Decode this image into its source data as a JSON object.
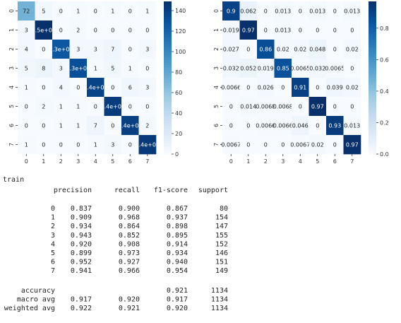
{
  "chart_data": [
    {
      "type": "heatmap",
      "title": "",
      "xlabel": "",
      "ylabel": "",
      "x_categories": [
        "0",
        "1",
        "2",
        "3",
        "4",
        "5",
        "6",
        "7"
      ],
      "y_categories": [
        "0",
        "1",
        "2",
        "3",
        "4",
        "5",
        "6",
        "7"
      ],
      "values": [
        [
          72,
          5,
          0,
          1,
          0,
          1,
          0,
          1
        ],
        [
          3,
          149,
          0,
          2,
          0,
          0,
          0,
          0
        ],
        [
          4,
          0,
          127,
          3,
          3,
          7,
          0,
          3
        ],
        [
          5,
          8,
          3,
          132,
          1,
          5,
          1,
          0
        ],
        [
          1,
          0,
          4,
          0,
          138,
          0,
          6,
          3
        ],
        [
          0,
          2,
          1,
          1,
          0,
          142,
          0,
          0
        ],
        [
          0,
          0,
          1,
          1,
          7,
          0,
          140,
          2
        ],
        [
          1,
          0,
          0,
          0,
          1,
          3,
          0,
          144
        ]
      ],
      "cell_labels": [
        [
          "72",
          "5",
          "0",
          "1",
          "0",
          "1",
          "0",
          "1"
        ],
        [
          "3",
          "1.5e+02",
          "0",
          "2",
          "0",
          "0",
          "0",
          "0"
        ],
        [
          "4",
          "0",
          "1.3e+02",
          "3",
          "3",
          "7",
          "0",
          "3"
        ],
        [
          "5",
          "8",
          "3",
          "1.3e+02",
          "1",
          "5",
          "1",
          "0"
        ],
        [
          "1",
          "0",
          "4",
          "0",
          "1.4e+02",
          "0",
          "6",
          "3"
        ],
        [
          "0",
          "2",
          "1",
          "1",
          "0",
          "1.4e+02",
          "0",
          "0"
        ],
        [
          "0",
          "0",
          "1",
          "1",
          "7",
          "0",
          "1.4e+02",
          "2"
        ],
        [
          "1",
          "0",
          "0",
          "0",
          "1",
          "3",
          "0",
          "1.4e+02"
        ]
      ],
      "colorbar": {
        "min": 0,
        "max": 149,
        "ticks": [
          "0",
          "20",
          "40",
          "60",
          "80",
          "100",
          "120",
          "140"
        ]
      },
      "colormap": [
        "#f7fbff",
        "#deebf7",
        "#c6dbef",
        "#9ecae1",
        "#6baed6",
        "#4292c6",
        "#2171b5",
        "#08519c",
        "#08306b"
      ]
    },
    {
      "type": "heatmap",
      "title": "",
      "xlabel": "",
      "ylabel": "",
      "x_categories": [
        "0",
        "1",
        "2",
        "3",
        "4",
        "5",
        "6",
        "7"
      ],
      "y_categories": [
        "0",
        "1",
        "2",
        "3",
        "4",
        "5",
        "6",
        "7"
      ],
      "values": [
        [
          0.9,
          0.062,
          0,
          0.013,
          0,
          0.013,
          0,
          0.013
        ],
        [
          0.019,
          0.97,
          0,
          0.013,
          0,
          0,
          0,
          0
        ],
        [
          0.027,
          0,
          0.86,
          0.02,
          0.02,
          0.048,
          0,
          0.02
        ],
        [
          0.032,
          0.052,
          0.019,
          0.85,
          0.0065,
          0.032,
          0.0065,
          0
        ],
        [
          0.0066,
          0,
          0.026,
          0,
          0.91,
          0,
          0.039,
          0.02
        ],
        [
          0,
          0.014,
          0.0068,
          0.0068,
          0,
          0.97,
          0,
          0
        ],
        [
          0,
          0,
          0.0066,
          0.0066,
          0.046,
          0,
          0.93,
          0.013
        ],
        [
          0.0067,
          0,
          0,
          0,
          0.0067,
          0.02,
          0,
          0.97
        ]
      ],
      "cell_labels": [
        [
          "0.9",
          "0.062",
          "0",
          "0.013",
          "0",
          "0.013",
          "0",
          "0.013"
        ],
        [
          "0.019",
          "0.97",
          "0",
          "0.013",
          "0",
          "0",
          "0",
          "0"
        ],
        [
          "0.027",
          "0",
          "0.86",
          "0.02",
          "0.02",
          "0.048",
          "0",
          "0.02"
        ],
        [
          "0.032",
          "0.052",
          "0.019",
          "0.85",
          "0.0065",
          "0.032",
          "0.0065",
          "0"
        ],
        [
          "0.0066",
          "0",
          "0.026",
          "0",
          "0.91",
          "0",
          "0.039",
          "0.02"
        ],
        [
          "0",
          "0.014",
          "0.0068",
          "0.0068",
          "0",
          "0.97",
          "0",
          "0"
        ],
        [
          "0",
          "0",
          "0.0066",
          "0.0066",
          "0.046",
          "0",
          "0.93",
          "0.013"
        ],
        [
          "0.0067",
          "0",
          "0",
          "0",
          "0.0067",
          "0.02",
          "0",
          "0.97"
        ]
      ],
      "colorbar": {
        "min": 0,
        "max": 0.97,
        "ticks": [
          "0.0",
          "0.2",
          "0.4",
          "0.6",
          "0.8"
        ]
      },
      "colormap": [
        "#f7fbff",
        "#deebf7",
        "#c6dbef",
        "#9ecae1",
        "#6baed6",
        "#4292c6",
        "#2171b5",
        "#08519c",
        "#08306b"
      ]
    },
    {
      "type": "table",
      "title": "train",
      "columns": [
        "precision",
        "recall",
        "f1-score",
        "support"
      ],
      "rows": [
        {
          "label": "0",
          "precision": "0.837",
          "recall": "0.900",
          "f1": "0.867",
          "support": "80"
        },
        {
          "label": "1",
          "precision": "0.909",
          "recall": "0.968",
          "f1": "0.937",
          "support": "154"
        },
        {
          "label": "2",
          "precision": "0.934",
          "recall": "0.864",
          "f1": "0.898",
          "support": "147"
        },
        {
          "label": "3",
          "precision": "0.943",
          "recall": "0.852",
          "f1": "0.895",
          "support": "155"
        },
        {
          "label": "4",
          "precision": "0.920",
          "recall": "0.908",
          "f1": "0.914",
          "support": "152"
        },
        {
          "label": "5",
          "precision": "0.899",
          "recall": "0.973",
          "f1": "0.934",
          "support": "146"
        },
        {
          "label": "6",
          "precision": "0.952",
          "recall": "0.927",
          "f1": "0.940",
          "support": "151"
        },
        {
          "label": "7",
          "precision": "0.941",
          "recall": "0.966",
          "f1": "0.954",
          "support": "149"
        }
      ],
      "summary": [
        {
          "label": "accuracy",
          "precision": "",
          "recall": "",
          "f1": "0.921",
          "support": "1134"
        },
        {
          "label": "macro avg",
          "precision": "0.917",
          "recall": "0.920",
          "f1": "0.917",
          "support": "1134"
        },
        {
          "label": "weighted avg",
          "precision": "0.922",
          "recall": "0.921",
          "f1": "0.920",
          "support": "1134"
        }
      ]
    }
  ]
}
